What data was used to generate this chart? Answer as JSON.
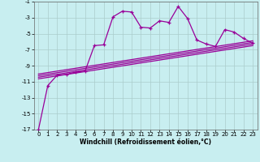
{
  "title": "",
  "xlabel": "Windchill (Refroidissement éolien,°C)",
  "bg_color": "#c8eef0",
  "line_color": "#990099",
  "xlim": [
    -0.5,
    23.5
  ],
  "ylim": [
    -17,
    -1
  ],
  "xticks": [
    0,
    1,
    2,
    3,
    4,
    5,
    6,
    7,
    8,
    9,
    10,
    11,
    12,
    13,
    14,
    15,
    16,
    17,
    18,
    19,
    20,
    21,
    22,
    23
  ],
  "yticks": [
    -1,
    -3,
    -5,
    -7,
    -9,
    -11,
    -13,
    -15,
    -17
  ],
  "main_line": [
    [
      0,
      -17
    ],
    [
      1,
      -11.5
    ],
    [
      2,
      -10.2
    ],
    [
      3,
      -10.1
    ],
    [
      4,
      -9.8
    ],
    [
      5,
      -9.7
    ],
    [
      6,
      -6.5
    ],
    [
      7,
      -6.4
    ],
    [
      8,
      -2.9
    ],
    [
      9,
      -2.2
    ],
    [
      10,
      -2.3
    ],
    [
      11,
      -4.2
    ],
    [
      12,
      -4.3
    ],
    [
      13,
      -3.4
    ],
    [
      14,
      -3.6
    ],
    [
      15,
      -1.6
    ],
    [
      16,
      -3.1
    ],
    [
      17,
      -5.8
    ],
    [
      18,
      -6.3
    ],
    [
      19,
      -6.6
    ],
    [
      20,
      -4.5
    ],
    [
      21,
      -4.8
    ],
    [
      22,
      -5.6
    ],
    [
      23,
      -6.2
    ]
  ],
  "reg_lines": [
    [
      [
        0,
        -10.05
      ],
      [
        23,
        -5.9
      ]
    ],
    [
      [
        0,
        -10.25
      ],
      [
        23,
        -6.1
      ]
    ],
    [
      [
        0,
        -10.45
      ],
      [
        23,
        -6.3
      ]
    ],
    [
      [
        0,
        -10.65
      ],
      [
        23,
        -6.5
      ]
    ]
  ],
  "grid_color": "#aacccc",
  "xlabel_fontsize": 5.5,
  "tick_fontsize": 5,
  "line_width": 0.9,
  "marker_size": 3.0
}
